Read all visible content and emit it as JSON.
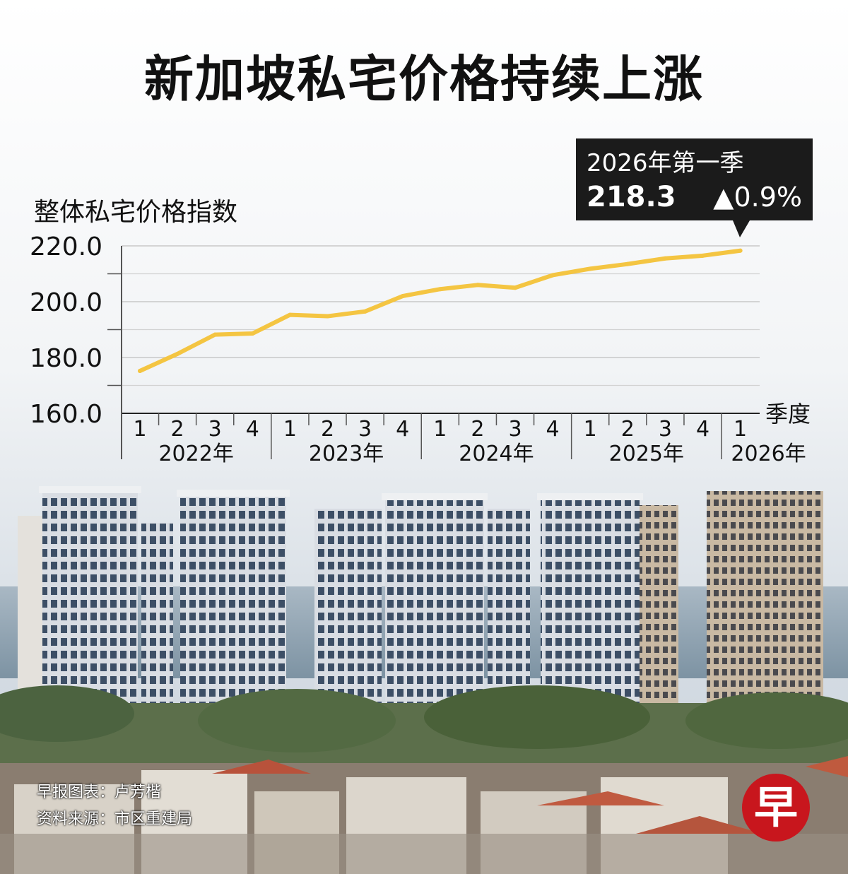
{
  "title": "新加坡私宅价格持续上涨",
  "chart_data": {
    "type": "line",
    "title": "新加坡私宅价格持续上涨",
    "ylabel": "整体私宅价格指数",
    "xlabel": "季度",
    "ylim": [
      160,
      220
    ],
    "y_ticks": [
      "220.0",
      "200.0",
      "180.0",
      "160.0"
    ],
    "grid": true,
    "quarters": [
      "1",
      "2",
      "3",
      "4",
      "1",
      "2",
      "3",
      "4",
      "1",
      "2",
      "3",
      "4",
      "1",
      "2",
      "3",
      "4",
      "1"
    ],
    "years": [
      "2022年",
      "2023年",
      "2024年",
      "2025年",
      "2026年"
    ],
    "series": [
      {
        "values": [
          175.2,
          181.3,
          188.2,
          188.6,
          195.3,
          194.8,
          196.5,
          202.0,
          204.5,
          206.0,
          205.0,
          209.5,
          211.8,
          213.5,
          215.5,
          216.5,
          218.3
        ],
        "color": "#f4c542"
      }
    ],
    "callout": {
      "label": "2026年第一季",
      "value": "218.3",
      "change": "▲0.9%"
    }
  },
  "credits": {
    "chart_by": "早报图表：卢芳楷",
    "source": "资料来源：市区重建局"
  },
  "logo_text": "早",
  "colors": {
    "line": "#f4c542",
    "callout_bg": "#1b1b1b",
    "logo": "#c8161d"
  }
}
